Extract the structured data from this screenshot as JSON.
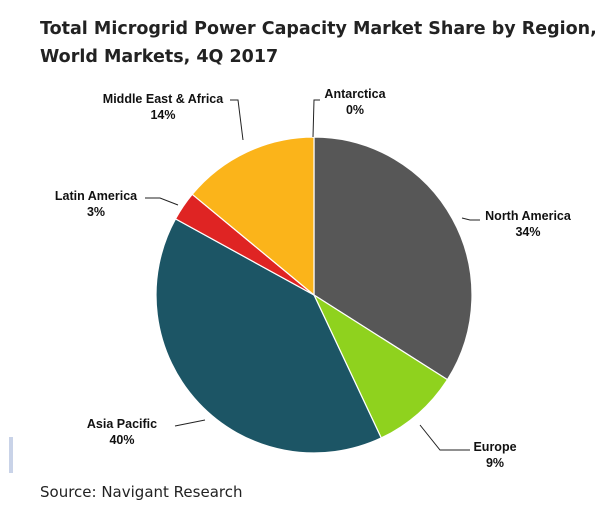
{
  "chart_data": {
    "type": "pie",
    "title": [
      "Total Microgrid Power Capacity Market Share by Region,",
      "World Markets, 4Q 2017"
    ],
    "source": "Source: Navigant Research",
    "slices": [
      {
        "label": "North America",
        "value": 34,
        "display": "34%",
        "color": "#575757"
      },
      {
        "label": "Europe",
        "value": 9,
        "display": "9%",
        "color": "#8fd21e"
      },
      {
        "label": "Asia Pacific",
        "value": 40,
        "display": "40%",
        "color": "#1c5565"
      },
      {
        "label": "Latin America",
        "value": 3,
        "display": "3%",
        "color": "#df2423"
      },
      {
        "label": "Middle East & Africa",
        "value": 14,
        "display": "14%",
        "color": "#fbb41a"
      },
      {
        "label": "Antarctica",
        "value": 0,
        "display": "0%",
        "color": "#cccccc"
      }
    ]
  }
}
